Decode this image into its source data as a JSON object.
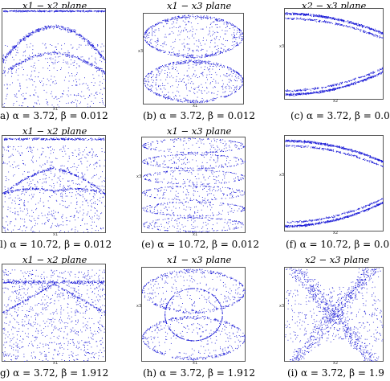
{
  "chart_data": [
    {
      "type": "scatter",
      "id": "a",
      "title": "x1 − x2 plane",
      "caption": "a) α = 3.72,  β = 0.012",
      "xlabel": "x1",
      "ylabel": "",
      "pattern": "x1x2_wave",
      "color": "#1a1ad6"
    },
    {
      "type": "scatter",
      "id": "b",
      "title": "x1 − x3 plane",
      "caption": "(b) α = 3.72,  β = 0.012",
      "xlabel": "x1",
      "ylabel": "x3",
      "pattern": "lens",
      "lobes": 2,
      "color": "#1a1ad6"
    },
    {
      "type": "scatter",
      "id": "c",
      "title": "x2 − x3 plane",
      "caption": "(c) α = 3.72,  β = 0.0",
      "xlabel": "x2",
      "ylabel": "x3",
      "pattern": "curves",
      "color": "#1a1ad6"
    },
    {
      "type": "scatter",
      "id": "d",
      "title": "x1 − x2 plane",
      "caption": "l) α = 10.72,  β = 0.012",
      "xlabel": "x1",
      "ylabel": "",
      "pattern": "x1x2_wave2",
      "color": "#1a1ad6"
    },
    {
      "type": "scatter",
      "id": "e",
      "title": "x1 − x3 plane",
      "caption": "(e) α = 10.72,  β = 0.012",
      "xlabel": "x1",
      "ylabel": "x3",
      "pattern": "lens",
      "lobes": 6,
      "color": "#1a1ad6"
    },
    {
      "type": "scatter",
      "id": "f",
      "title": "",
      "caption": "(f) α = 10.72,  β = 0.0",
      "xlabel": "x2",
      "ylabel": "x3",
      "pattern": "curves",
      "color": "#1a1ad6"
    },
    {
      "type": "scatter",
      "id": "g",
      "title": "x1 − x2 plane",
      "caption": "g) α = 3.72,  β = 1.912",
      "xlabel": "x1",
      "ylabel": "",
      "pattern": "x1x2_dense",
      "color": "#1a1ad6"
    },
    {
      "type": "scatter",
      "id": "h",
      "title": "x1 − x3 plane",
      "caption": "(h) α = 3.72,  β = 1.912",
      "xlabel": "x1",
      "ylabel": "x3",
      "pattern": "lens_circle",
      "lobes": 2,
      "color": "#1a1ad6"
    },
    {
      "type": "scatter",
      "id": "i",
      "title": "x2 − x3 plane",
      "caption": "(i) α = 3.72,  β = 1.9",
      "xlabel": "x2",
      "ylabel": "x3",
      "pattern": "x_cross",
      "color": "#1a1ad6"
    }
  ]
}
